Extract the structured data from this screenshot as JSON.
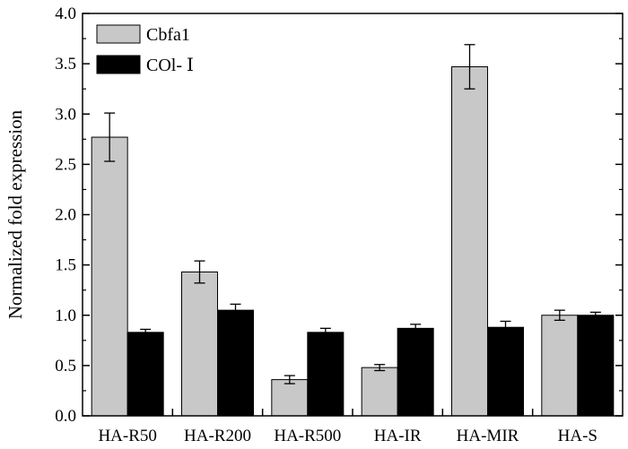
{
  "chart_data": {
    "type": "bar",
    "categories": [
      "HA-R50",
      "HA-R200",
      "HA-R500",
      "HA-IR",
      "HA-MIR",
      "HA-S"
    ],
    "series": [
      {
        "name": "Cbfa1",
        "color": "#c8c8c8",
        "values": [
          2.77,
          1.43,
          0.36,
          0.48,
          3.47,
          1.0
        ],
        "errors": [
          0.24,
          0.11,
          0.04,
          0.03,
          0.22,
          0.05
        ]
      },
      {
        "name": "COl- Ⅰ",
        "color": "#000000",
        "values": [
          0.83,
          1.05,
          0.83,
          0.87,
          0.88,
          1.0
        ],
        "errors": [
          0.03,
          0.06,
          0.04,
          0.04,
          0.06,
          0.03
        ]
      }
    ],
    "ylabel": "Normalized fold expression",
    "xlabel": "",
    "ylim": [
      0,
      4.0
    ],
    "yticks": [
      "0.0",
      "0.5",
      "1.0",
      "1.5",
      "2.0",
      "2.5",
      "3.0",
      "3.5",
      "4.0"
    ],
    "legend_position": "top-left",
    "grid": false
  }
}
